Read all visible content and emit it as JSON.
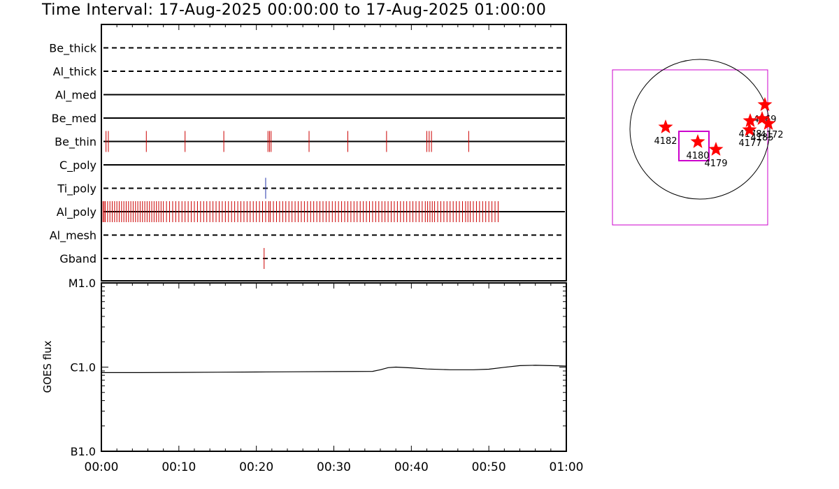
{
  "title": "Time Interval: 17-Aug-2025 00:00:00 to 17-Aug-2025 01:00:00",
  "colors": {
    "axis": "#000000",
    "events": "#cc0000",
    "ti_poly_event": "#2233aa",
    "fov": "#cc00cc",
    "star": "#ff0000"
  },
  "chart_data": [
    {
      "type": "event-timeline",
      "x_range_minutes": [
        0,
        60
      ],
      "channels": [
        {
          "name": "Be_thick",
          "style": "dashed",
          "events_min": []
        },
        {
          "name": "Al_thick",
          "style": "dashed",
          "events_min": []
        },
        {
          "name": "Al_med",
          "style": "solid",
          "events_min": []
        },
        {
          "name": "Be_med",
          "style": "solid",
          "events_min": []
        },
        {
          "name": "Be_thin",
          "style": "solid",
          "events_min": [
            0.6,
            0.9,
            5.8,
            10.8,
            15.8,
            21.5,
            21.7,
            21.9,
            26.8,
            31.8,
            36.8,
            42.0,
            42.3,
            42.6,
            47.4
          ]
        },
        {
          "name": "C_poly",
          "style": "solid",
          "events_min": []
        },
        {
          "name": "Ti_poly",
          "style": "dashed",
          "events_min": [
            21.2
          ]
        },
        {
          "name": "Al_poly",
          "style": "solid",
          "events_min": [
            0.2,
            0.35,
            0.5,
            0.8,
            1.1,
            1.4,
            1.7,
            2.0,
            2.3,
            2.6,
            2.9,
            3.2,
            3.5,
            3.8,
            4.1,
            4.4,
            4.7,
            5.0,
            5.3,
            5.6,
            5.9,
            6.2,
            6.5,
            6.8,
            7.1,
            7.4,
            7.7,
            8.0,
            8.4,
            8.8,
            9.2,
            9.6,
            10.0,
            10.4,
            10.8,
            11.2,
            11.6,
            12.0,
            12.4,
            12.8,
            13.2,
            13.6,
            14.0,
            14.4,
            14.8,
            15.2,
            15.6,
            16.0,
            16.4,
            16.8,
            17.2,
            17.6,
            18.0,
            18.4,
            18.8,
            19.2,
            19.6,
            20.0,
            20.4,
            20.8,
            21.2,
            21.6,
            21.8,
            22.2,
            22.6,
            23.0,
            23.4,
            23.8,
            24.2,
            24.6,
            25.0,
            25.4,
            25.8,
            26.2,
            26.6,
            27.0,
            27.4,
            27.8,
            28.2,
            28.6,
            29.0,
            29.4,
            29.8,
            30.2,
            30.6,
            31.0,
            31.4,
            31.8,
            32.2,
            32.6,
            33.0,
            33.4,
            33.8,
            34.2,
            34.6,
            35.0,
            35.4,
            35.8,
            36.2,
            36.6,
            37.0,
            37.4,
            37.8,
            38.2,
            38.6,
            39.0,
            39.4,
            39.8,
            40.2,
            40.6,
            41.0,
            41.4,
            41.8,
            42.1,
            42.4,
            42.7,
            43.0,
            43.4,
            43.8,
            44.2,
            44.6,
            45.0,
            45.4,
            45.8,
            46.2,
            46.6,
            47.0,
            47.3,
            47.6,
            48.0,
            48.4,
            48.8,
            49.2,
            49.6,
            50.0,
            50.4,
            50.8,
            51.2
          ]
        },
        {
          "name": "Al_mesh",
          "style": "dashed",
          "events_min": []
        },
        {
          "name": "Gband",
          "style": "dashed",
          "events_min": [
            21.0
          ]
        }
      ]
    },
    {
      "type": "line",
      "ylabel": "GOES flux",
      "yscale": "log",
      "ylim": [
        1e-07,
        1e-05
      ],
      "y_ticks": [
        {
          "label": "B1.0",
          "value": 1e-07
        },
        {
          "label": "C1.0",
          "value": 1e-06
        },
        {
          "label": "M1.0",
          "value": 1e-05
        }
      ],
      "x_ticks": [
        "00:00",
        "00:10",
        "00:20",
        "00:30",
        "00:40",
        "00:50",
        "01:00"
      ],
      "xlim_minutes": [
        0,
        60
      ],
      "series": [
        {
          "x": [
            0,
            5,
            10,
            15,
            20,
            25,
            30,
            35,
            36,
            37,
            38,
            40,
            42,
            45,
            48,
            50,
            52,
            54,
            56,
            58,
            60
          ],
          "y": [
            8.6e-07,
            8.6e-07,
            8.65e-07,
            8.7e-07,
            8.75e-07,
            8.8e-07,
            8.85e-07,
            8.9e-07,
            9.3e-07,
            9.85e-07,
            1e-06,
            9.8e-07,
            9.5e-07,
            9.3e-07,
            9.3e-07,
            9.45e-07,
            9.95e-07,
            1.04e-06,
            1.05e-06,
            1.04e-06,
            1.03e-06
          ]
        }
      ]
    },
    {
      "type": "scatter",
      "points": [
        {
          "label": "4182"
        },
        {
          "label": "4180"
        },
        {
          "label": "4179"
        },
        {
          "label": "4169"
        },
        {
          "label": "4178"
        },
        {
          "label": "4172"
        },
        {
          "label": "4177"
        },
        {
          "label": "4185"
        }
      ]
    }
  ]
}
